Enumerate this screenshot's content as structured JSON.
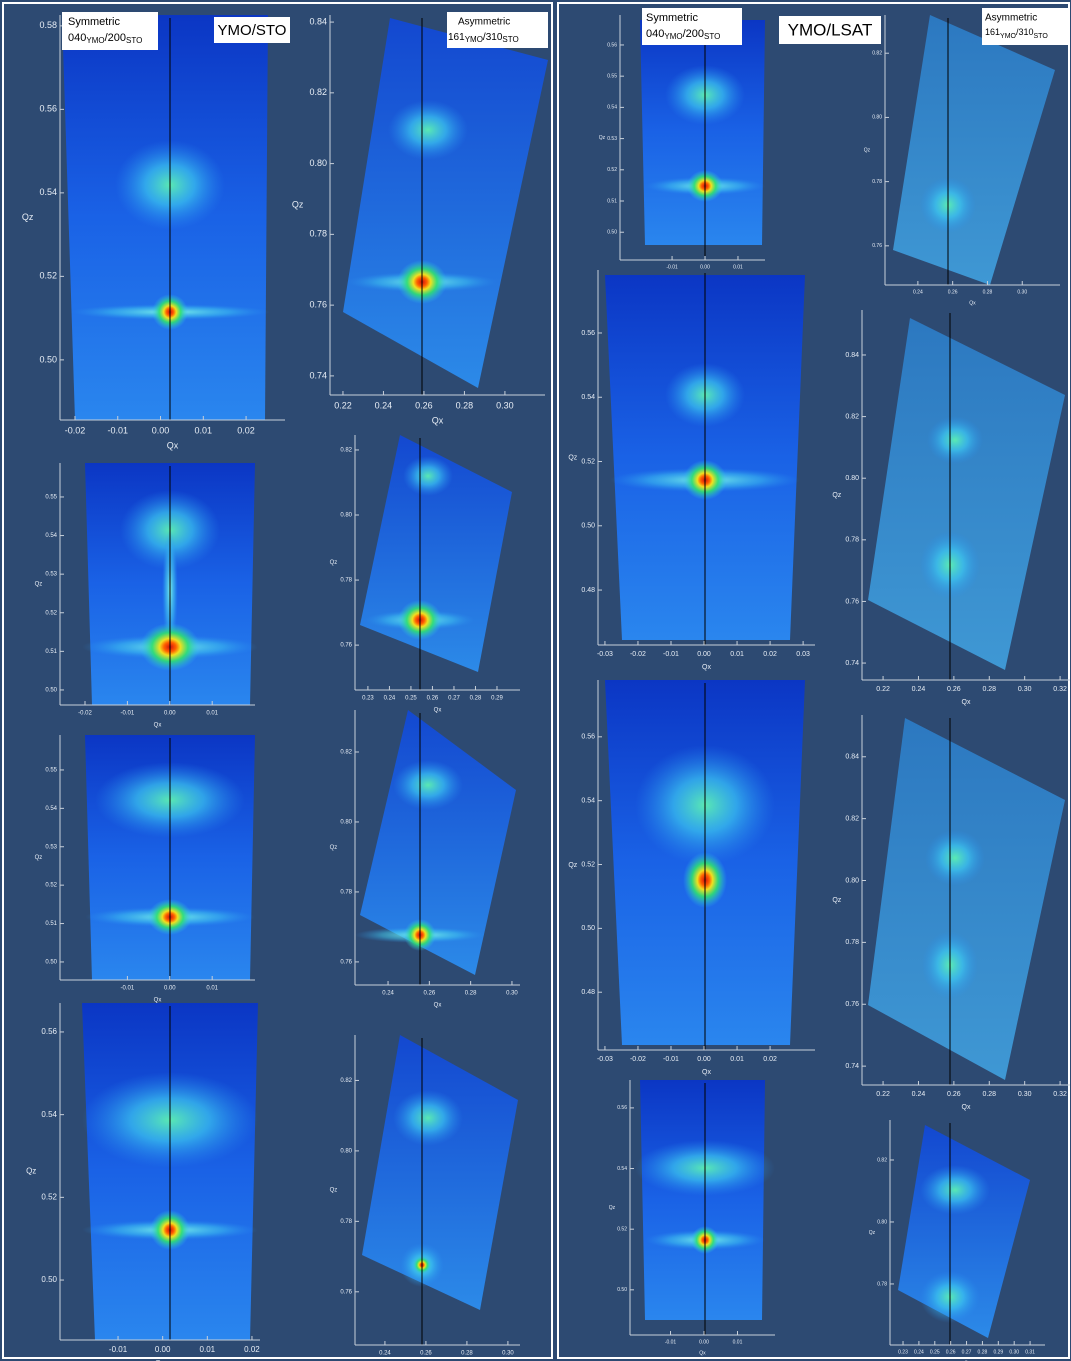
{
  "left": {
    "title": "YMO/STO",
    "symmetric": {
      "label": "Symmetric",
      "formula": [
        "040",
        "YMO",
        "/200",
        "STO"
      ]
    },
    "asymmetric": {
      "label": "Asymmetric",
      "formula": [
        "161",
        "YMO",
        "/310",
        "STO"
      ]
    }
  },
  "right": {
    "title": "YMO/LSAT",
    "symmetric": {
      "label": "Symmetric",
      "formula": [
        "040",
        "YMO",
        "/200",
        "STO"
      ]
    },
    "asymmetric": {
      "label": "Asymmetric",
      "formula": [
        "161",
        "YMO",
        "/310",
        "STO"
      ]
    }
  },
  "panels": [
    {
      "xlabel": "Qx",
      "ylabel": "Qz",
      "xlim": [
        -0.0235,
        0.0291
      ],
      "ylim": [
        0.4856,
        0.5826
      ],
      "xticks": [
        -0.02,
        -0.01,
        {
          "value": 0,
          "label": "0.00"
        },
        0.01,
        0.02
      ],
      "yticks": [
        {
          "value": 0.5,
          "label": "0.50"
        },
        0.52,
        0.54,
        0.56,
        0.58
      ]
    },
    {
      "xlabel": "Qx",
      "ylabel": "Qz",
      "xlim": [
        -0.0259,
        0.0201
      ],
      "ylim": [
        0.4961,
        0.5588
      ],
      "xticks": [
        -0.02,
        -0.01,
        {
          "value": 0,
          "label": "0.00"
        },
        0.01
      ],
      "yticks": [
        {
          "value": 0.5,
          "label": "0.50"
        },
        0.51,
        0.52,
        0.53,
        0.54,
        0.55
      ]
    },
    {
      "xlabel": "Qx",
      "ylabel": "Qz",
      "xlim": [
        -0.0259,
        0.0201
      ],
      "ylim": [
        0.4953,
        0.5591
      ],
      "xticks": [
        -0.01,
        {
          "value": 0,
          "label": "0.00"
        },
        0.01
      ],
      "yticks": [
        {
          "value": 0.5,
          "label": "0.50"
        },
        0.51,
        0.52,
        0.53,
        0.54,
        0.55
      ]
    },
    {
      "xlabel": "Qx",
      "ylabel": "Qz",
      "xlim": [
        -0.023,
        0.0218
      ],
      "ylim": [
        0.4855,
        0.567
      ],
      "xticks": [
        -0.01,
        {
          "value": 0,
          "label": "0.00"
        },
        0.01,
        0.02
      ],
      "yticks": [
        {
          "value": 0.5,
          "label": "0.50"
        },
        0.52,
        0.54,
        0.56
      ]
    },
    {
      "xlabel": "Qx",
      "ylabel": "Qz",
      "xlim": [
        0.2136,
        0.3198
      ],
      "ylim": [
        0.7346,
        0.842
      ],
      "xticks": [
        0.22,
        0.24,
        0.26,
        0.28,
        {
          "value": 0.3,
          "label": "0.30"
        }
      ],
      "yticks": [
        0.74,
        0.76,
        0.78,
        {
          "value": 0.8,
          "label": "0.80"
        },
        0.82,
        0.84
      ]
    },
    {
      "xlabel": "Qx",
      "ylabel": "Qz",
      "xlim": [
        0.224,
        0.3007
      ],
      "ylim": [
        0.7462,
        0.8246
      ],
      "xticks": [
        0.23,
        0.24,
        0.25,
        0.26,
        0.27,
        0.28,
        0.29
      ],
      "yticks": [
        0.76,
        0.78,
        {
          "value": 0.8,
          "label": "0.80"
        },
        0.82
      ]
    },
    {
      "xlabel": "Qx",
      "ylabel": "Qz",
      "xlim": [
        0.224,
        0.3039
      ],
      "ylim": [
        0.7534,
        0.832
      ],
      "xticks": [
        0.24,
        0.26,
        0.28,
        {
          "value": 0.3,
          "label": "0.30"
        }
      ],
      "yticks": [
        0.76,
        0.78,
        {
          "value": 0.8,
          "label": "0.80"
        },
        0.82
      ]
    },
    {
      "xlabel": "Qx",
      "ylabel": "Qz",
      "xlim": [
        0.2254,
        0.3059
      ],
      "ylim": [
        0.7449,
        0.8329
      ],
      "xticks": [
        0.24,
        0.26,
        0.28,
        {
          "value": 0.3,
          "label": "0.30"
        }
      ],
      "yticks": [
        0.76,
        0.78,
        {
          "value": 0.8,
          "label": "0.80"
        },
        0.82
      ]
    },
    {
      "xlabel": "Qx",
      "ylabel": "Qz",
      "xlim": [
        -0.0258,
        0.0182
      ],
      "ylim": [
        0.4911,
        0.5696
      ],
      "xticks": [
        -0.01,
        {
          "value": 0,
          "label": "0.00"
        },
        0.01
      ],
      "yticks": [
        {
          "value": 0.5,
          "label": "0.50"
        },
        0.51,
        0.52,
        0.53,
        0.54,
        0.55,
        0.56
      ]
    },
    {
      "xlabel": "Qx",
      "ylabel": "Qz",
      "xlim": [
        -0.0321,
        0.0336
      ],
      "ylim": [
        0.4629,
        0.5796
      ],
      "xticks": [
        -0.03,
        -0.02,
        -0.01,
        {
          "value": 0,
          "label": "0.00"
        },
        0.01,
        0.02,
        0.03
      ],
      "yticks": [
        0.48,
        {
          "value": 0.5,
          "label": "0.50"
        },
        0.52,
        0.54,
        0.56
      ]
    },
    {
      "xlabel": "Qx",
      "ylabel": "Qz",
      "xlim": [
        -0.0321,
        0.0336
      ],
      "ylim": [
        0.4619,
        0.5778
      ],
      "xticks": [
        -0.03,
        -0.02,
        -0.01,
        {
          "value": 0,
          "label": "0.00"
        },
        0.01,
        0.02
      ],
      "yticks": [
        0.48,
        {
          "value": 0.5,
          "label": "0.50"
        },
        0.52,
        0.54,
        0.56
      ]
    },
    {
      "xlabel": "Qx",
      "ylabel": "Qz",
      "xlim": [
        -0.0221,
        0.0212
      ],
      "ylim": [
        0.4851,
        0.5692
      ],
      "xticks": [
        -0.01,
        {
          "value": 0,
          "label": "0.00"
        },
        0.01
      ],
      "yticks": [
        {
          "value": 0.5,
          "label": "0.50"
        },
        0.52,
        0.54,
        0.56
      ]
    },
    {
      "xlabel": "Qx",
      "ylabel": "Qz",
      "xlim": [
        0.2211,
        0.3217
      ],
      "ylim": [
        0.7478,
        0.8319
      ],
      "xticks": [
        0.24,
        0.26,
        0.28,
        {
          "value": 0.3,
          "label": "0.30"
        }
      ],
      "yticks": [
        0.76,
        0.78,
        {
          "value": 0.8,
          "label": "0.80"
        },
        0.82
      ]
    },
    {
      "xlabel": "Qx",
      "ylabel": "Qz",
      "xlim": [
        0.2081,
        0.3256
      ],
      "ylim": [
        0.7345,
        0.8546
      ],
      "xticks": [
        0.22,
        0.24,
        0.26,
        0.28,
        {
          "value": 0.3,
          "label": "0.30"
        },
        0.32
      ],
      "yticks": [
        0.74,
        0.76,
        0.78,
        {
          "value": 0.8,
          "label": "0.80"
        },
        0.82,
        0.84
      ]
    },
    {
      "xlabel": "Qx",
      "ylabel": "Qz",
      "xlim": [
        0.2081,
        0.3256
      ],
      "ylim": [
        0.7339,
        0.8535
      ],
      "xticks": [
        0.22,
        0.24,
        0.26,
        0.28,
        {
          "value": 0.3,
          "label": "0.30"
        },
        0.32
      ],
      "yticks": [
        0.74,
        0.76,
        0.78,
        {
          "value": 0.8,
          "label": "0.80"
        },
        0.82,
        0.84
      ]
    },
    {
      "xlabel": "Qx",
      "ylabel": "Qz",
      "xlim": [
        0.2218,
        0.3194
      ],
      "ylim": [
        0.7603,
        0.8329
      ],
      "xticks": [
        0.23,
        0.24,
        0.25,
        0.26,
        0.27,
        0.28,
        0.29,
        {
          "value": 0.3,
          "label": "0.30"
        },
        0.31
      ],
      "yticks": [
        0.78,
        {
          "value": 0.8,
          "label": "0.80"
        },
        0.82
      ]
    }
  ]
}
